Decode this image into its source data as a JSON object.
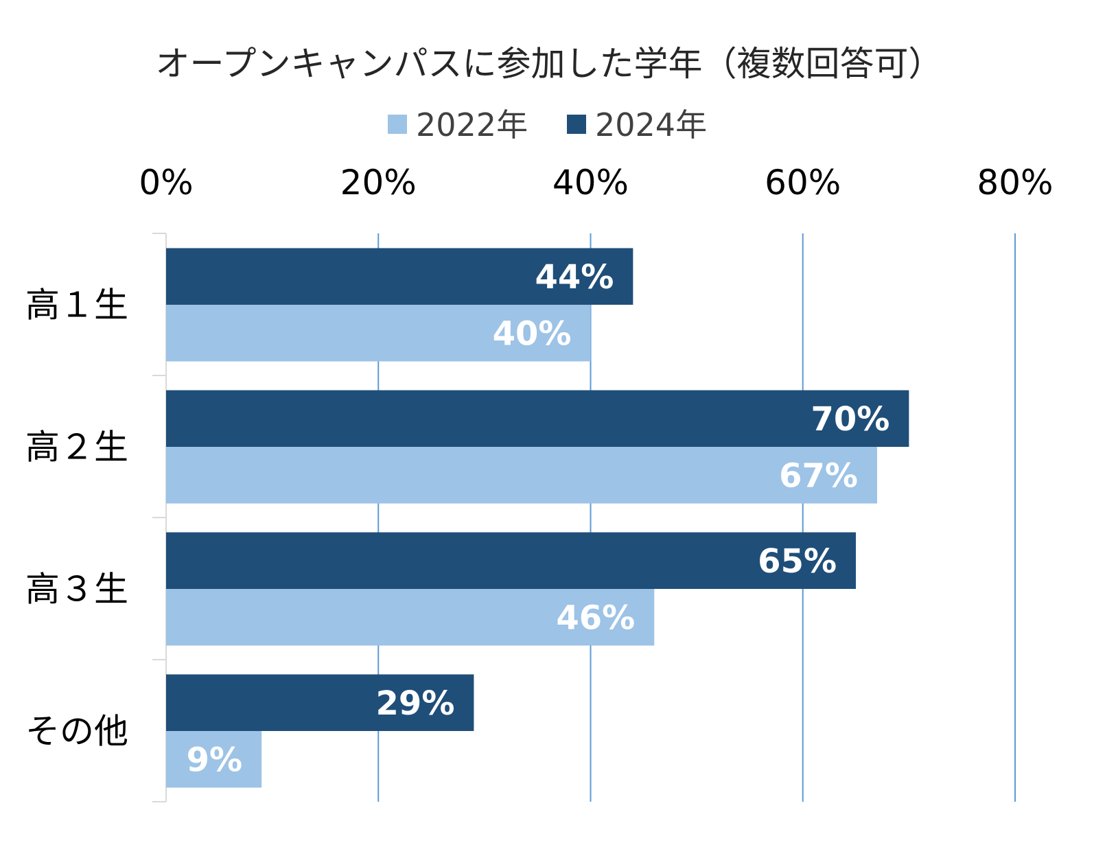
{
  "chart_data": {
    "type": "bar",
    "orientation": "horizontal",
    "title": "オープンキャンパスに参加した学年（複数回答可）",
    "categories": [
      "高１生",
      "高２生",
      "高３生",
      "その他"
    ],
    "series": [
      {
        "name": "2024年",
        "color": "#1f4e79",
        "values": [
          44,
          70,
          65,
          29
        ],
        "labels": [
          "44%",
          "70%",
          "65%",
          "29%"
        ]
      },
      {
        "name": "2022年",
        "color": "#9dc3e6",
        "values": [
          40,
          67,
          46,
          9
        ],
        "labels": [
          "40%",
          "67%",
          "46%",
          "9%"
        ]
      }
    ],
    "legend": [
      "2022年",
      "2024年"
    ],
    "legend_placement": "top",
    "xlim": [
      0,
      80
    ],
    "xticks": [
      0,
      20,
      40,
      60,
      80
    ],
    "xtick_labels": [
      "0%",
      "20%",
      "40%",
      "60%",
      "80%"
    ],
    "x_axis_position": "top",
    "grid": true,
    "grid_color": "#5b9bd5"
  }
}
